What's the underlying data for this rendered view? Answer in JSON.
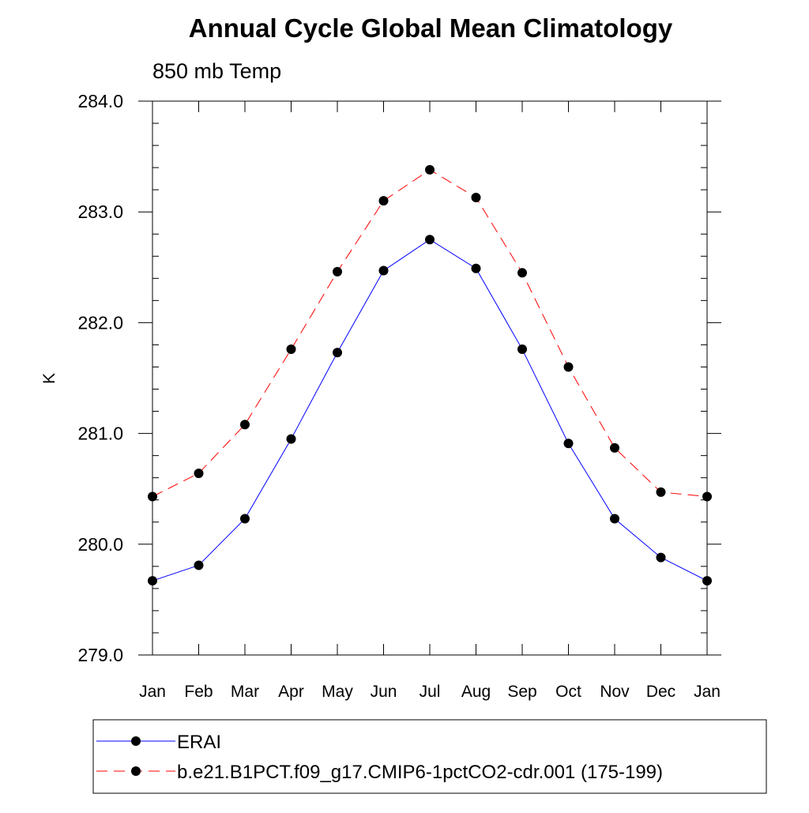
{
  "chart_data": {
    "type": "line",
    "title": "Annual Cycle Global Mean Climatology",
    "subtitle": "850 mb Temp",
    "ylabel": "K",
    "xlabel": "",
    "categories": [
      "Jan",
      "Feb",
      "Mar",
      "Apr",
      "May",
      "Jun",
      "Jul",
      "Aug",
      "Sep",
      "Oct",
      "Nov",
      "Dec",
      "Jan"
    ],
    "ylim": [
      279.0,
      284.0
    ],
    "yticks": [
      "279.0",
      "280.0",
      "281.0",
      "282.0",
      "283.0",
      "284.0"
    ],
    "grid": false,
    "legend_position": "bottom",
    "series": [
      {
        "name": "ERAI",
        "color": "#0000ff",
        "line_style": "solid",
        "marker": "filled-circle",
        "values": [
          279.67,
          279.81,
          280.23,
          280.95,
          281.73,
          282.47,
          282.75,
          282.49,
          281.76,
          280.91,
          280.23,
          279.88,
          279.67
        ]
      },
      {
        "name": "b.e21.B1PCT.f09_g17.CMIP6-1pctCO2-cdr.001 (175-199)",
        "color": "#ff0000",
        "line_style": "dashed",
        "marker": "filled-circle",
        "values": [
          280.43,
          280.64,
          281.08,
          281.76,
          282.46,
          283.1,
          283.38,
          283.13,
          282.45,
          281.6,
          280.87,
          280.47,
          280.43
        ]
      }
    ]
  }
}
